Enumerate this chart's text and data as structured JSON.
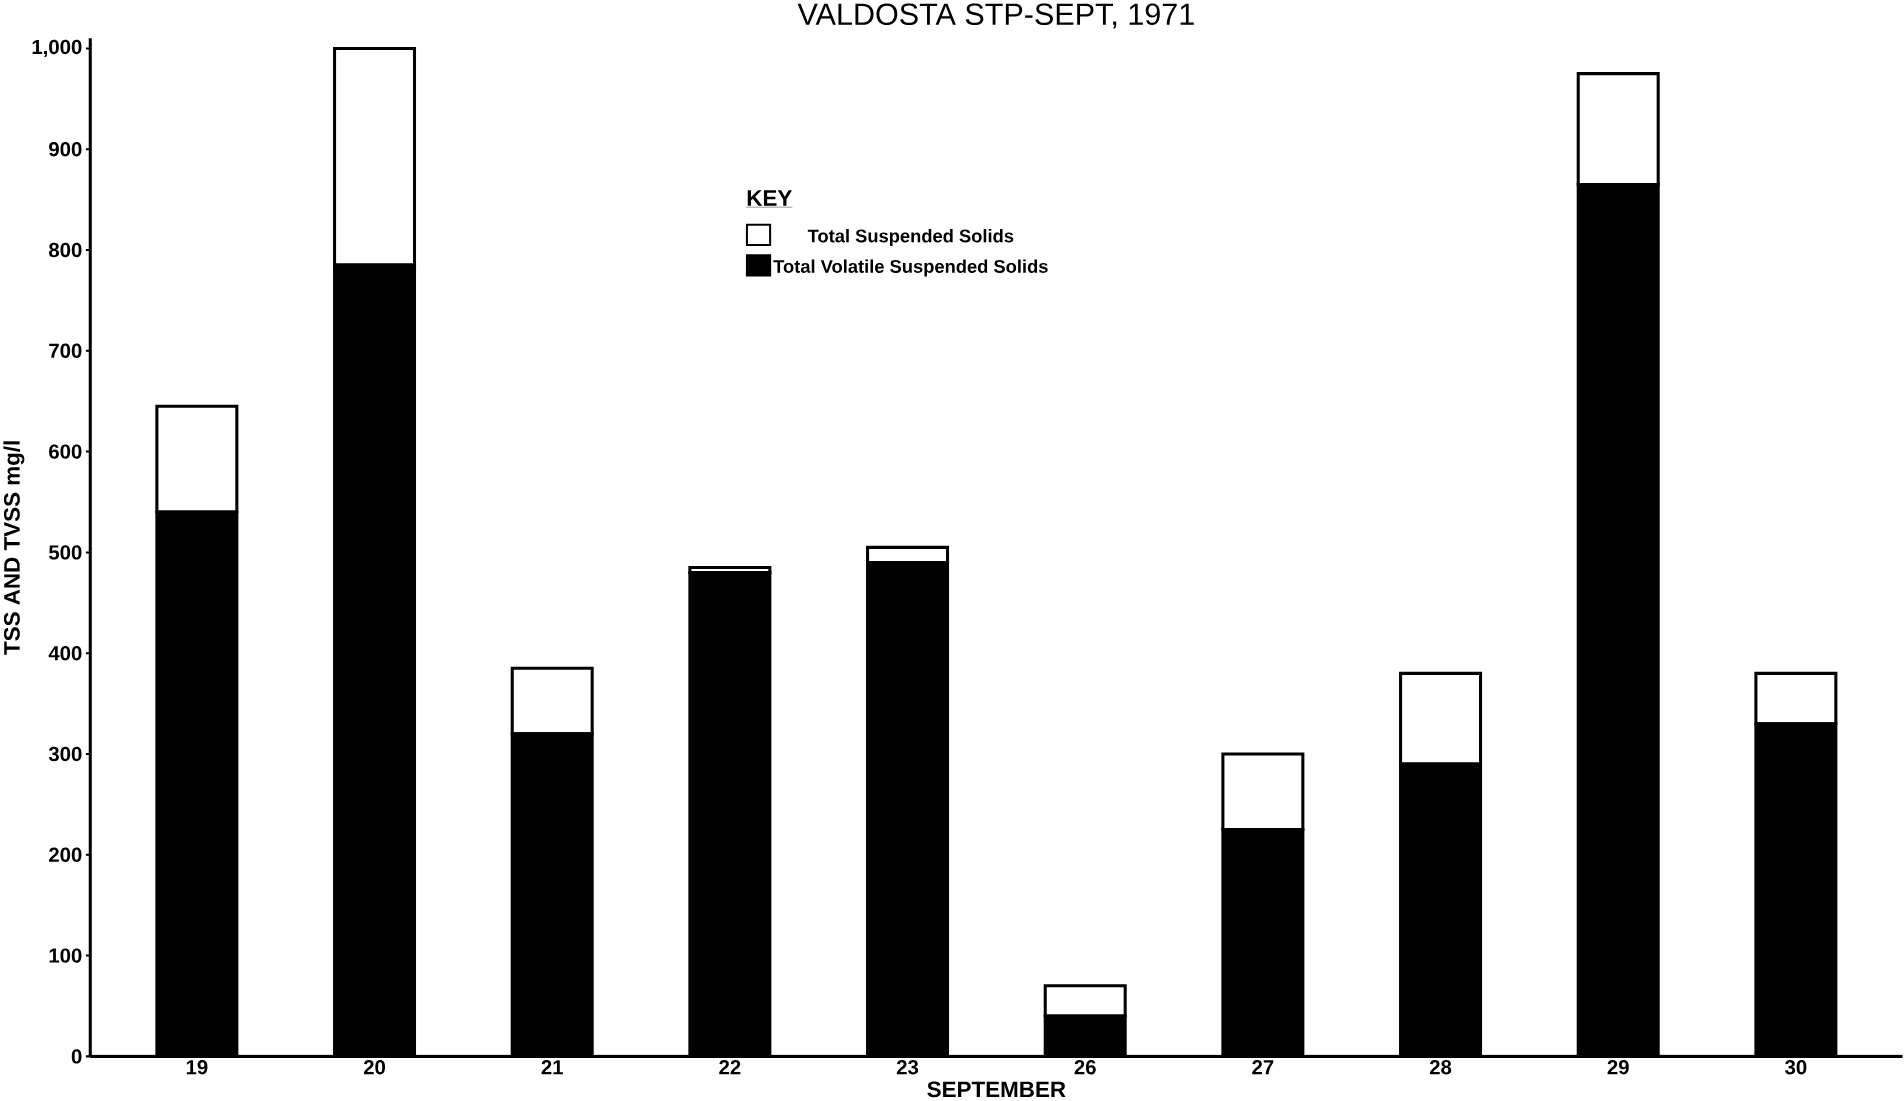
{
  "chart_data": {
    "type": "bar",
    "title": "VALDOSTA STP-SEPT, 1971",
    "xlabel": "SEPTEMBER",
    "ylabel": "TSS AND TVSS mg/l",
    "legend_title": "KEY",
    "categories": [
      "19",
      "20",
      "21",
      "22",
      "23",
      "26",
      "27",
      "28",
      "29",
      "30"
    ],
    "stacked": true,
    "series": [
      {
        "name": "Total Volatile Suspended Solids",
        "color": "#000000",
        "values": [
          540,
          785,
          320,
          480,
          490,
          40,
          225,
          290,
          865,
          330
        ]
      },
      {
        "name": "Total Suspended Solids",
        "color": "#ffffff",
        "values": [
          105,
          215,
          65,
          5,
          15,
          30,
          75,
          90,
          110,
          50
        ]
      }
    ],
    "ylim": [
      0,
      1010
    ],
    "yticks": [
      0,
      100,
      200,
      300,
      400,
      500,
      600,
      700,
      800,
      900,
      {
        "value": 1000,
        "label": "1,000"
      }
    ],
    "legend": "top",
    "grid": false
  }
}
